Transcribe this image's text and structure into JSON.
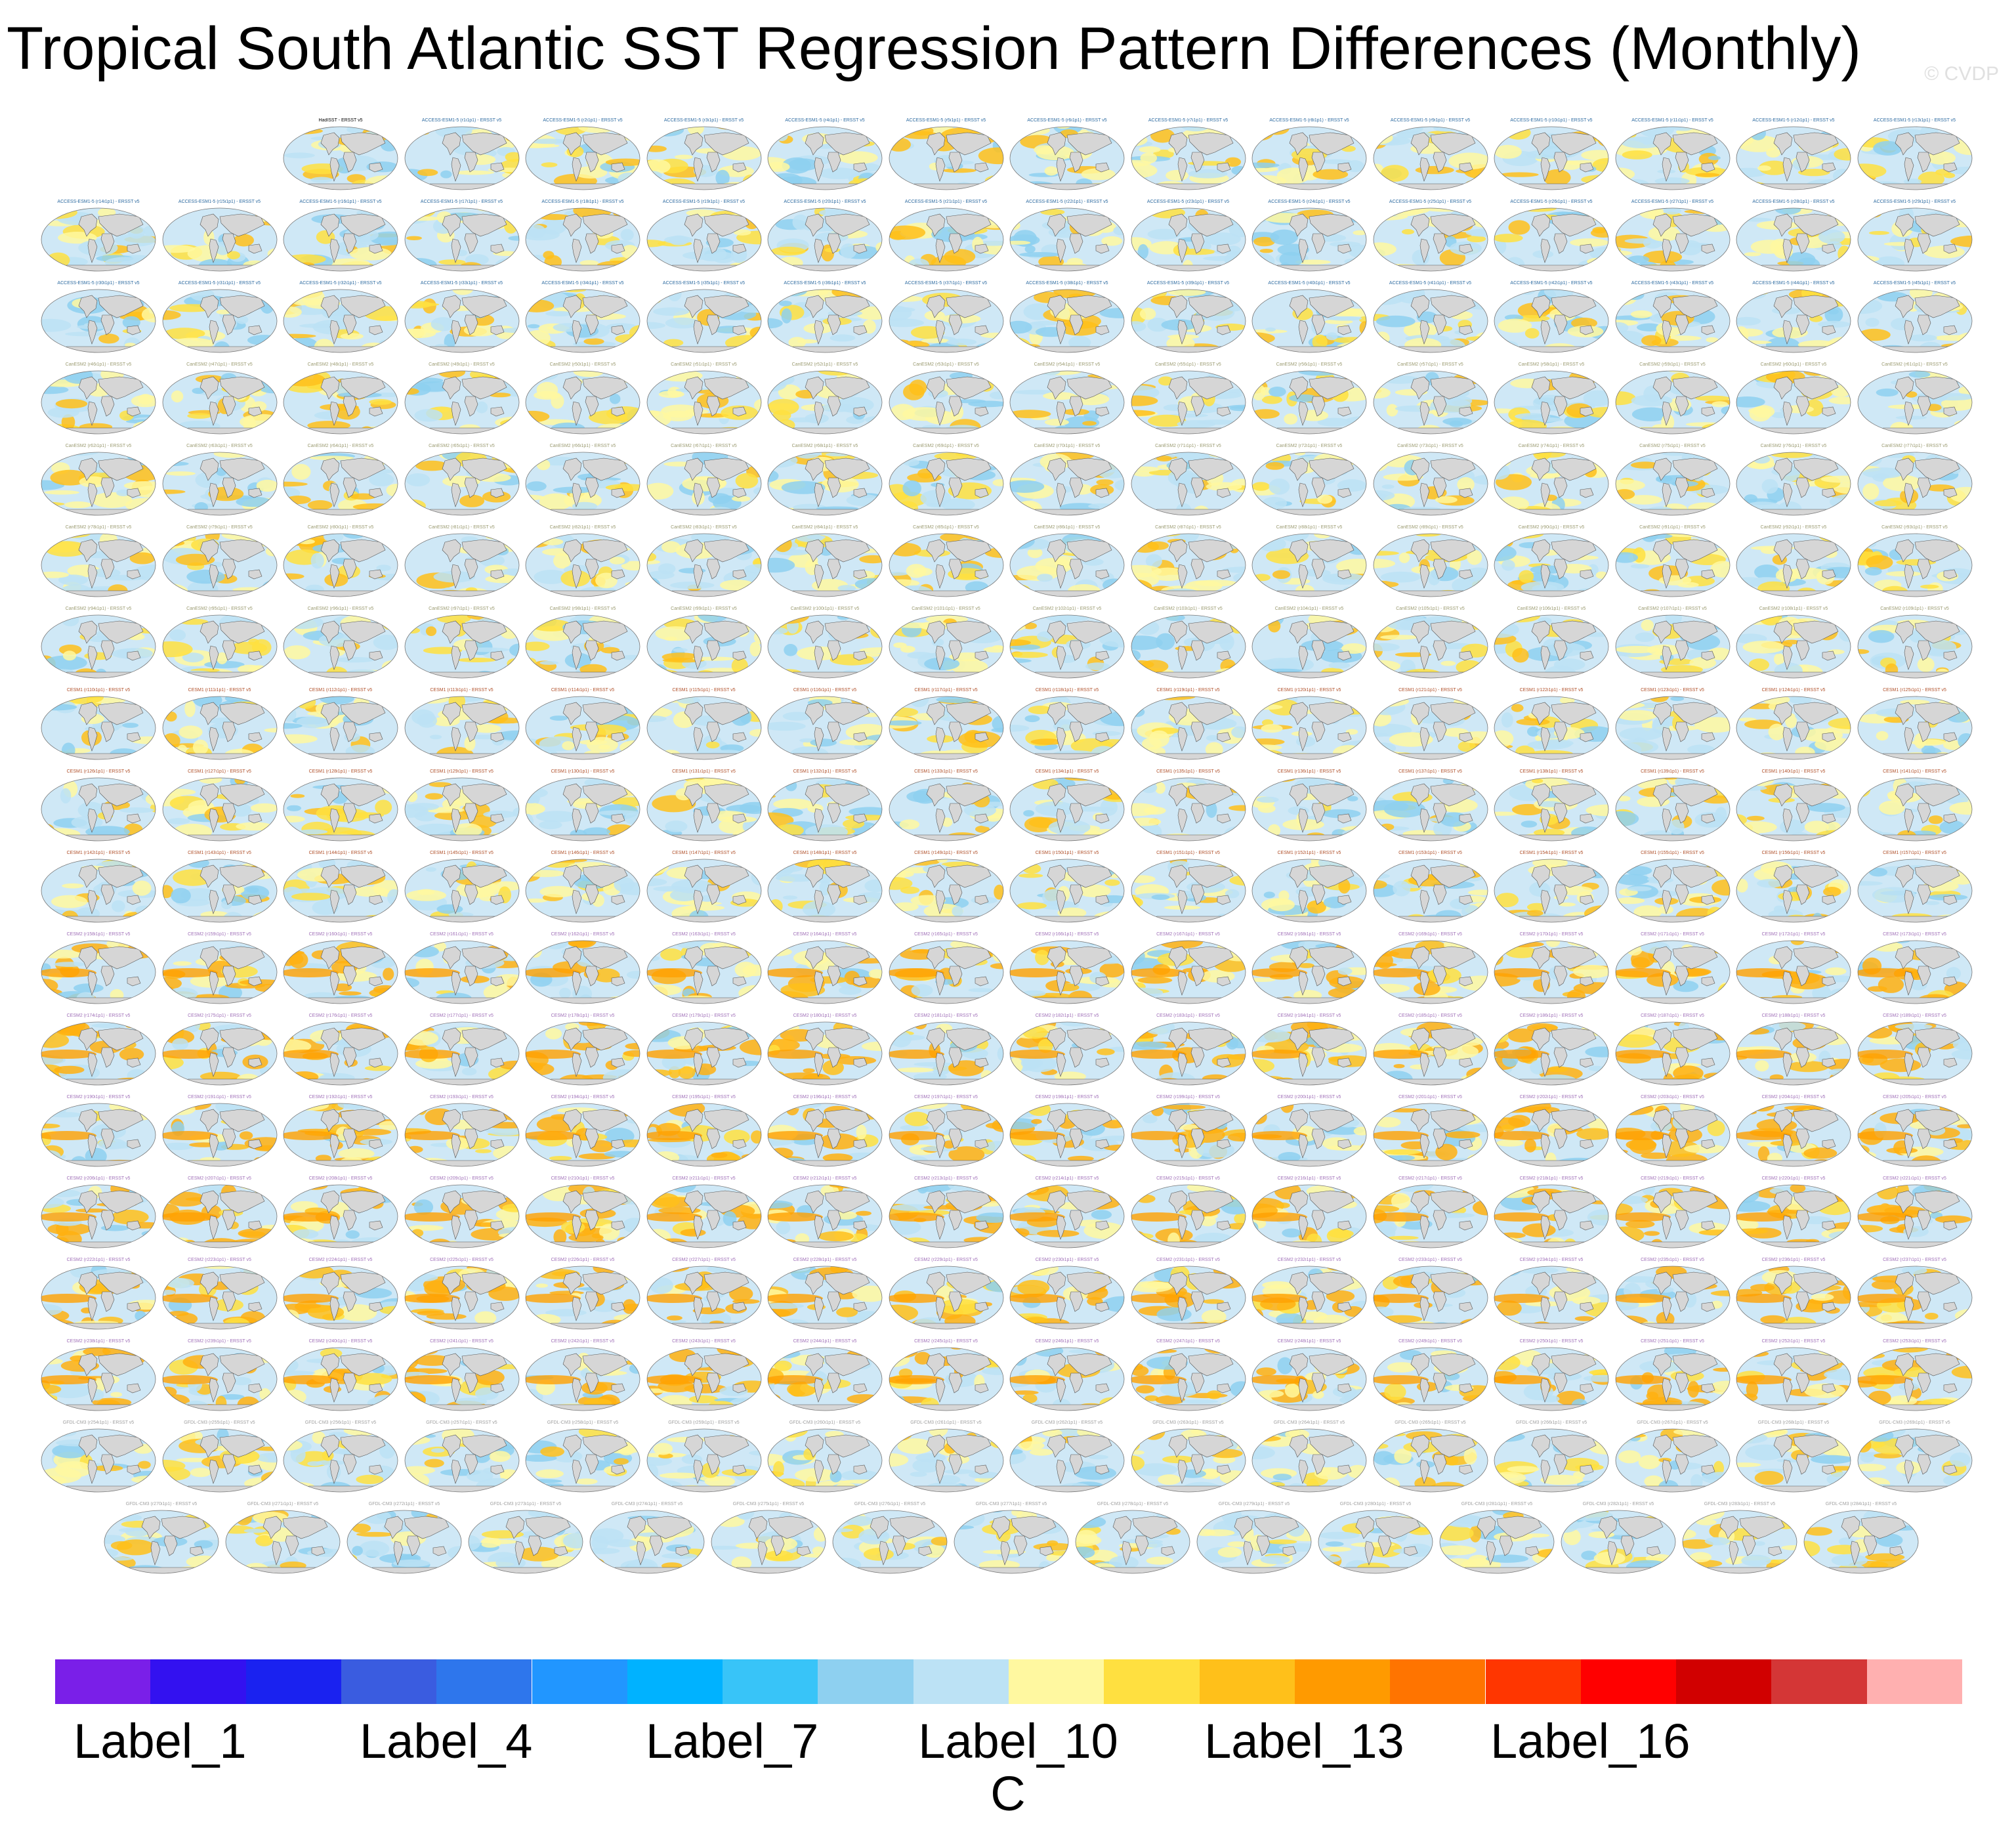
{
  "chart_data": {
    "type": "map-panel-grid",
    "title": "Tropical South Atlantic SST Regression Pattern Differences (Monthly)",
    "watermark": "© CVDP",
    "projection": "Robinson (global)",
    "rows": [
      14,
      16,
      16,
      16,
      16,
      16,
      16,
      16,
      16,
      16,
      16,
      16,
      16,
      16,
      16,
      16,
      16,
      15
    ],
    "first_panel_title": "HadISST - ERSST v5",
    "panel_title_suffix": " - ERSST v5",
    "model_groups": [
      {
        "name": "ACCESS-ESM1-5",
        "color": "#2c6aa0"
      },
      {
        "name": "CanESM2",
        "color": "#9a9a70"
      },
      {
        "name": "CESM1",
        "color": "#b0502a"
      },
      {
        "name": "CESM2",
        "color": "#a070b8"
      },
      {
        "name": "GFDL-CM3",
        "color": "#a0a0a0"
      }
    ],
    "colorbar": {
      "units": "C",
      "tick_labels": [
        "Label_1",
        "Label_4",
        "Label_7",
        "Label_10",
        "Label_13",
        "Label_16"
      ],
      "tick_box_index": [
        1,
        4,
        7,
        10,
        13,
        16
      ],
      "colors": [
        "#7a1fe8",
        "#3311f0",
        "#1a22f0",
        "#3a5ce0",
        "#2e76ec",
        "#2196ff",
        "#00b2ff",
        "#38c4f8",
        "#8ed0f0",
        "#bce2f5",
        "#fff8a0",
        "#ffe040",
        "#ffc01a",
        "#ff9a00",
        "#ff7400",
        "#ff3600",
        "#ff0000",
        "#d10000",
        "#d43636",
        "#ffb0b0"
      ]
    }
  }
}
